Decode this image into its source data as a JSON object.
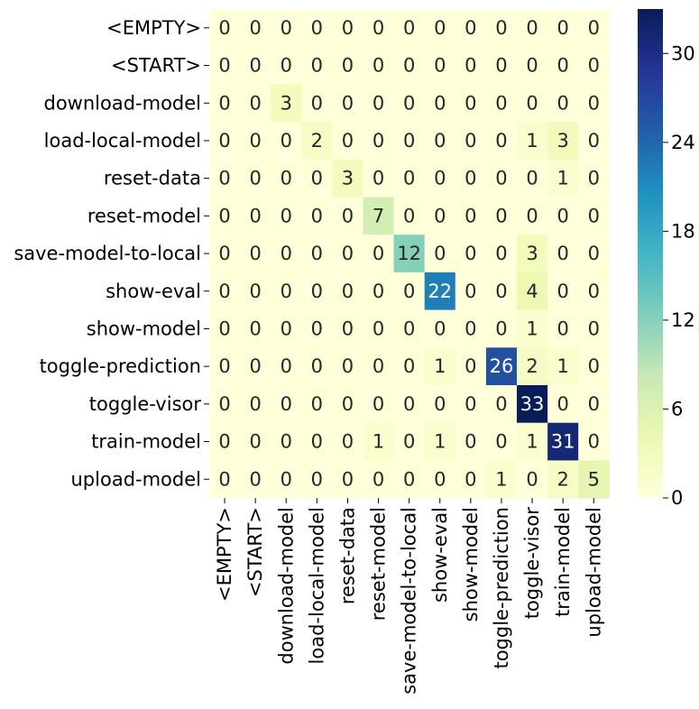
{
  "chart_data": {
    "type": "heatmap",
    "title": "",
    "xlabel": "",
    "ylabel": "",
    "labels": [
      "<EMPTY>",
      "<START>",
      "download-model",
      "load-local-model",
      "reset-data",
      "reset-model",
      "save-model-to-local",
      "show-eval",
      "show-model",
      "toggle-prediction",
      "toggle-visor",
      "train-model",
      "upload-model"
    ],
    "matrix": [
      [
        0,
        0,
        0,
        0,
        0,
        0,
        0,
        0,
        0,
        0,
        0,
        0,
        0
      ],
      [
        0,
        0,
        0,
        0,
        0,
        0,
        0,
        0,
        0,
        0,
        0,
        0,
        0
      ],
      [
        0,
        0,
        3,
        0,
        0,
        0,
        0,
        0,
        0,
        0,
        0,
        0,
        0
      ],
      [
        0,
        0,
        0,
        2,
        0,
        0,
        0,
        0,
        0,
        0,
        1,
        3,
        0
      ],
      [
        0,
        0,
        0,
        0,
        3,
        0,
        0,
        0,
        0,
        0,
        0,
        1,
        0
      ],
      [
        0,
        0,
        0,
        0,
        0,
        7,
        0,
        0,
        0,
        0,
        0,
        0,
        0
      ],
      [
        0,
        0,
        0,
        0,
        0,
        0,
        12,
        0,
        0,
        0,
        3,
        0,
        0
      ],
      [
        0,
        0,
        0,
        0,
        0,
        0,
        0,
        22,
        0,
        0,
        4,
        0,
        0
      ],
      [
        0,
        0,
        0,
        0,
        0,
        0,
        0,
        0,
        0,
        0,
        1,
        0,
        0
      ],
      [
        0,
        0,
        0,
        0,
        0,
        0,
        0,
        1,
        0,
        26,
        2,
        1,
        0
      ],
      [
        0,
        0,
        0,
        0,
        0,
        0,
        0,
        0,
        0,
        0,
        33,
        0,
        0
      ],
      [
        0,
        0,
        0,
        0,
        0,
        1,
        0,
        1,
        0,
        0,
        1,
        31,
        0
      ],
      [
        0,
        0,
        0,
        0,
        0,
        0,
        0,
        0,
        0,
        1,
        0,
        2,
        5
      ]
    ],
    "value_range": [
      0,
      33
    ],
    "colorbar_ticks": [
      0,
      6,
      12,
      18,
      24,
      30
    ],
    "colormap": "YlGnBu",
    "colorbar_placement": "right",
    "annotated": true,
    "grid": false
  }
}
